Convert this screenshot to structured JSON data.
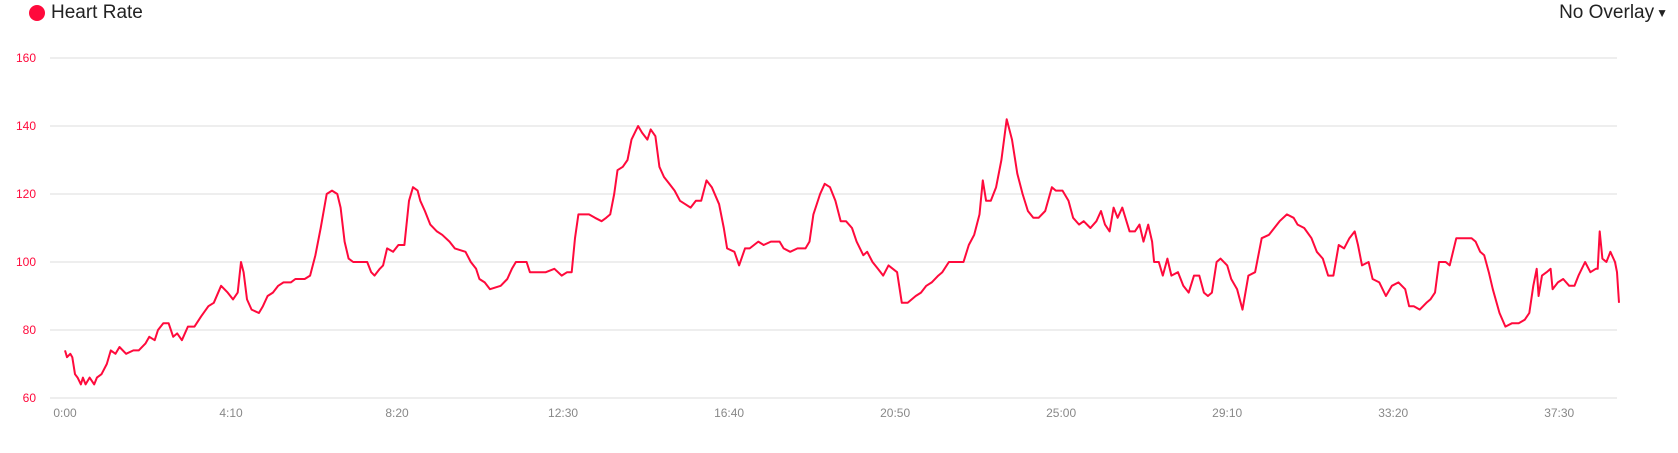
{
  "legend": {
    "label": "Heart Rate",
    "color": "#ff0a3c"
  },
  "overlay_dropdown": {
    "label": "No Overlay",
    "icon": "caret-down-icon"
  },
  "chart_data": {
    "type": "line",
    "title": "",
    "xlabel": "",
    "ylabel": "",
    "xlim": [
      0,
      2340
    ],
    "ylim": [
      60,
      160
    ],
    "yticks": [
      60,
      80,
      100,
      120,
      140,
      160
    ],
    "xticks": [
      {
        "value": 0,
        "label": "0:00"
      },
      {
        "value": 250,
        "label": "4:10"
      },
      {
        "value": 500,
        "label": "8:20"
      },
      {
        "value": 750,
        "label": "12:30"
      },
      {
        "value": 1000,
        "label": "16:40"
      },
      {
        "value": 1250,
        "label": "20:50"
      },
      {
        "value": 1500,
        "label": "25:00"
      },
      {
        "value": 1750,
        "label": "29:10"
      },
      {
        "value": 2000,
        "label": "33:20"
      },
      {
        "value": 2250,
        "label": "37:30"
      }
    ],
    "grid": "horizontal",
    "series": [
      {
        "name": "Heart Rate",
        "color": "#ff0a3c",
        "points": [
          [
            0,
            74
          ],
          [
            3,
            72
          ],
          [
            8,
            73
          ],
          [
            11,
            72
          ],
          [
            15,
            67
          ],
          [
            19,
            66
          ],
          [
            24,
            64
          ],
          [
            27,
            66
          ],
          [
            31,
            64
          ],
          [
            37,
            66
          ],
          [
            44,
            64
          ],
          [
            48,
            66
          ],
          [
            55,
            67
          ],
          [
            63,
            70
          ],
          [
            69,
            74
          ],
          [
            76,
            73
          ],
          [
            82,
            75
          ],
          [
            92,
            73
          ],
          [
            103,
            74
          ],
          [
            111,
            74
          ],
          [
            121,
            76
          ],
          [
            127,
            78
          ],
          [
            135,
            77
          ],
          [
            140,
            80
          ],
          [
            148,
            82
          ],
          [
            156,
            82
          ],
          [
            163,
            78
          ],
          [
            169,
            79
          ],
          [
            176,
            77
          ],
          [
            185,
            81
          ],
          [
            195,
            81
          ],
          [
            205,
            84
          ],
          [
            216,
            87
          ],
          [
            224,
            88
          ],
          [
            235,
            93
          ],
          [
            245,
            91
          ],
          [
            253,
            89
          ],
          [
            260,
            91
          ],
          [
            265,
            100
          ],
          [
            269,
            97
          ],
          [
            274,
            89
          ],
          [
            281,
            86
          ],
          [
            292,
            85
          ],
          [
            298,
            87
          ],
          [
            305,
            90
          ],
          [
            313,
            91
          ],
          [
            321,
            93
          ],
          [
            329,
            94
          ],
          [
            340,
            94
          ],
          [
            347,
            95
          ],
          [
            361,
            95
          ],
          [
            369,
            96
          ],
          [
            377,
            102
          ],
          [
            385,
            110
          ],
          [
            394,
            120
          ],
          [
            402,
            121
          ],
          [
            410,
            120
          ],
          [
            415,
            116
          ],
          [
            421,
            106
          ],
          [
            427,
            101
          ],
          [
            434,
            100
          ],
          [
            442,
            100
          ],
          [
            455,
            100
          ],
          [
            461,
            97
          ],
          [
            466,
            96
          ],
          [
            474,
            98
          ],
          [
            479,
            99
          ],
          [
            485,
            104
          ],
          [
            494,
            103
          ],
          [
            502,
            105
          ],
          [
            511,
            105
          ],
          [
            518,
            118
          ],
          [
            524,
            122
          ],
          [
            531,
            121
          ],
          [
            535,
            118
          ],
          [
            542,
            115
          ],
          [
            550,
            111
          ],
          [
            560,
            109
          ],
          [
            568,
            108
          ],
          [
            579,
            106
          ],
          [
            587,
            104
          ],
          [
            603,
            103
          ],
          [
            611,
            100
          ],
          [
            619,
            98
          ],
          [
            624,
            95
          ],
          [
            632,
            94
          ],
          [
            640,
            92
          ],
          [
            656,
            93
          ],
          [
            666,
            95
          ],
          [
            673,
            98
          ],
          [
            679,
            100
          ],
          [
            689,
            100
          ],
          [
            695,
            100
          ],
          [
            700,
            97
          ],
          [
            708,
            97
          ],
          [
            724,
            97
          ],
          [
            737,
            98
          ],
          [
            748,
            96
          ],
          [
            756,
            97
          ],
          [
            763,
            97
          ],
          [
            768,
            107
          ],
          [
            773,
            114
          ],
          [
            782,
            114
          ],
          [
            789,
            114
          ],
          [
            798,
            113
          ],
          [
            808,
            112
          ],
          [
            815,
            113
          ],
          [
            821,
            114
          ],
          [
            827,
            120
          ],
          [
            832,
            127
          ],
          [
            840,
            128
          ],
          [
            847,
            130
          ],
          [
            853,
            136
          ],
          [
            863,
            140
          ],
          [
            869,
            138
          ],
          [
            877,
            136
          ],
          [
            882,
            139
          ],
          [
            889,
            137
          ],
          [
            895,
            128
          ],
          [
            902,
            125
          ],
          [
            910,
            123
          ],
          [
            918,
            121
          ],
          [
            926,
            118
          ],
          [
            934,
            117
          ],
          [
            942,
            116
          ],
          [
            950,
            118
          ],
          [
            958,
            118
          ],
          [
            966,
            124
          ],
          [
            974,
            122
          ],
          [
            985,
            117
          ],
          [
            992,
            110
          ],
          [
            997,
            104
          ],
          [
            1008,
            103
          ],
          [
            1015,
            99
          ],
          [
            1024,
            104
          ],
          [
            1031,
            104
          ],
          [
            1044,
            106
          ],
          [
            1052,
            105
          ],
          [
            1063,
            106
          ],
          [
            1076,
            106
          ],
          [
            1082,
            104
          ],
          [
            1092,
            103
          ],
          [
            1103,
            104
          ],
          [
            1115,
            104
          ],
          [
            1121,
            106
          ],
          [
            1127,
            114
          ],
          [
            1137,
            120
          ],
          [
            1144,
            123
          ],
          [
            1152,
            122
          ],
          [
            1160,
            118
          ],
          [
            1168,
            112
          ],
          [
            1176,
            112
          ],
          [
            1185,
            110
          ],
          [
            1192,
            106
          ],
          [
            1202,
            102
          ],
          [
            1208,
            103
          ],
          [
            1216,
            100
          ],
          [
            1224,
            98
          ],
          [
            1232,
            96
          ],
          [
            1240,
            99
          ],
          [
            1253,
            97
          ],
          [
            1260,
            88
          ],
          [
            1269,
            88
          ],
          [
            1281,
            90
          ],
          [
            1289,
            91
          ],
          [
            1297,
            93
          ],
          [
            1305,
            94
          ],
          [
            1315,
            96
          ],
          [
            1321,
            97
          ],
          [
            1331,
            100
          ],
          [
            1345,
            100
          ],
          [
            1353,
            100
          ],
          [
            1361,
            105
          ],
          [
            1369,
            108
          ],
          [
            1377,
            114
          ],
          [
            1382,
            124
          ],
          [
            1387,
            118
          ],
          [
            1394,
            118
          ],
          [
            1402,
            122
          ],
          [
            1410,
            130
          ],
          [
            1418,
            142
          ],
          [
            1426,
            136
          ],
          [
            1434,
            126
          ],
          [
            1442,
            120
          ],
          [
            1450,
            115
          ],
          [
            1458,
            113
          ],
          [
            1466,
            113
          ],
          [
            1476,
            115
          ],
          [
            1486,
            122
          ],
          [
            1492,
            121
          ],
          [
            1502,
            121
          ],
          [
            1511,
            118
          ],
          [
            1518,
            113
          ],
          [
            1527,
            111
          ],
          [
            1534,
            112
          ],
          [
            1544,
            110
          ],
          [
            1553,
            112
          ],
          [
            1560,
            115
          ],
          [
            1566,
            111
          ],
          [
            1573,
            109
          ],
          [
            1579,
            116
          ],
          [
            1585,
            113
          ],
          [
            1592,
            116
          ],
          [
            1603,
            109
          ],
          [
            1611,
            109
          ],
          [
            1618,
            111
          ],
          [
            1624,
            106
          ],
          [
            1631,
            111
          ],
          [
            1637,
            106
          ],
          [
            1640,
            100
          ],
          [
            1647,
            100
          ],
          [
            1653,
            96
          ],
          [
            1660,
            101
          ],
          [
            1666,
            96
          ],
          [
            1676,
            97
          ],
          [
            1684,
            93
          ],
          [
            1692,
            91
          ],
          [
            1700,
            96
          ],
          [
            1708,
            96
          ],
          [
            1715,
            91
          ],
          [
            1721,
            90
          ],
          [
            1727,
            91
          ],
          [
            1734,
            100
          ],
          [
            1740,
            101
          ],
          [
            1750,
            99
          ],
          [
            1756,
            95
          ],
          [
            1765,
            92
          ],
          [
            1773,
            86
          ],
          [
            1782,
            96
          ],
          [
            1792,
            97
          ],
          [
            1802,
            107
          ],
          [
            1813,
            108
          ],
          [
            1821,
            110
          ],
          [
            1829,
            112
          ],
          [
            1840,
            114
          ],
          [
            1850,
            113
          ],
          [
            1856,
            111
          ],
          [
            1866,
            110
          ],
          [
            1877,
            107
          ],
          [
            1885,
            103
          ],
          [
            1894,
            101
          ],
          [
            1902,
            96
          ],
          [
            1910,
            96
          ],
          [
            1918,
            105
          ],
          [
            1926,
            104
          ],
          [
            1934,
            107
          ],
          [
            1942,
            109
          ],
          [
            1947,
            105
          ],
          [
            1953,
            99
          ],
          [
            1963,
            100
          ],
          [
            1969,
            95
          ],
          [
            1979,
            94
          ],
          [
            1989,
            90
          ],
          [
            1998,
            93
          ],
          [
            2008,
            94
          ],
          [
            2018,
            92
          ],
          [
            2024,
            87
          ],
          [
            2031,
            87
          ],
          [
            2040,
            86
          ],
          [
            2050,
            88
          ],
          [
            2056,
            89
          ],
          [
            2063,
            91
          ],
          [
            2069,
            100
          ],
          [
            2079,
            100
          ],
          [
            2085,
            99
          ],
          [
            2095,
            107
          ],
          [
            2108,
            107
          ],
          [
            2118,
            107
          ],
          [
            2124,
            106
          ],
          [
            2131,
            103
          ],
          [
            2137,
            102
          ],
          [
            2144,
            97
          ],
          [
            2150,
            92
          ],
          [
            2160,
            85
          ],
          [
            2169,
            81
          ],
          [
            2179,
            82
          ],
          [
            2189,
            82
          ],
          [
            2198,
            83
          ],
          [
            2205,
            85
          ],
          [
            2211,
            93
          ],
          [
            2216,
            98
          ],
          [
            2219,
            90
          ],
          [
            2224,
            96
          ],
          [
            2231,
            97
          ],
          [
            2237,
            98
          ],
          [
            2240,
            92
          ],
          [
            2248,
            94
          ],
          [
            2256,
            95
          ],
          [
            2265,
            93
          ],
          [
            2273,
            93
          ],
          [
            2279,
            96
          ],
          [
            2289,
            100
          ],
          [
            2297,
            97
          ],
          [
            2305,
            98
          ],
          [
            2308,
            98
          ],
          [
            2311,
            109
          ],
          [
            2315,
            101
          ],
          [
            2321,
            100
          ],
          [
            2327,
            103
          ],
          [
            2334,
            100
          ],
          [
            2337,
            97
          ],
          [
            2340,
            88
          ]
        ]
      }
    ]
  }
}
